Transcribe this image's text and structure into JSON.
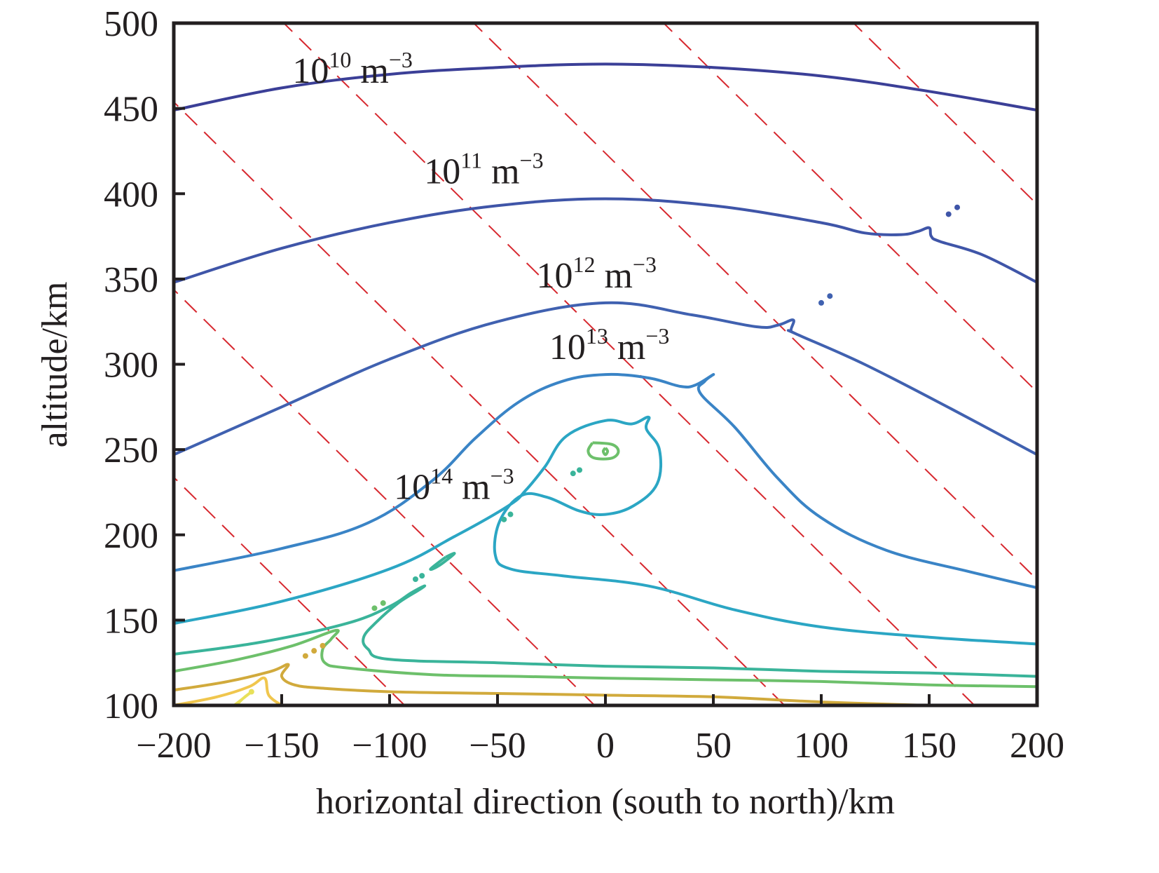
{
  "chart_data": {
    "type": "contour",
    "title": "",
    "xlabel": "horizontal direction (south to north)/km",
    "ylabel": "altitude/km",
    "xlim": [
      -200,
      200
    ],
    "ylim": [
      100,
      500
    ],
    "xticks": [
      -200,
      -150,
      -100,
      -50,
      0,
      50,
      100,
      150,
      200
    ],
    "xtick_labels": [
      "−200",
      "−150",
      "−100",
      "−50",
      "0",
      "50",
      "100",
      "150",
      "200"
    ],
    "yticks": [
      100,
      150,
      200,
      250,
      300,
      350,
      400,
      450,
      500
    ],
    "ytick_labels": [
      "100",
      "150",
      "200",
      "250",
      "300",
      "350",
      "400",
      "450",
      "500"
    ],
    "grid": false,
    "units": "m^-3",
    "contour_labels": [
      {
        "base": "10",
        "exp": "10",
        "unit": "m",
        "unit_exp": "−3",
        "x": -145,
        "y": 465
      },
      {
        "base": "10",
        "exp": "11",
        "unit": "m",
        "unit_exp": "−3",
        "x": -84,
        "y": 406
      },
      {
        "base": "10",
        "exp": "12",
        "unit": "m",
        "unit_exp": "−3",
        "x": -32,
        "y": 345
      },
      {
        "base": "10",
        "exp": "13",
        "unit": "m",
        "unit_exp": "−3",
        "x": -26,
        "y": 303
      },
      {
        "base": "10",
        "exp": "14",
        "unit": "m",
        "unit_exp": "−3",
        "x": -98,
        "y": 221
      }
    ],
    "contours": [
      {
        "level": "1e10",
        "color": "#3b3f97",
        "points": [
          [
            -200,
            449
          ],
          [
            -150,
            462
          ],
          [
            -100,
            470
          ],
          [
            -50,
            474
          ],
          [
            0,
            476
          ],
          [
            50,
            474
          ],
          [
            100,
            469
          ],
          [
            150,
            460
          ],
          [
            200,
            449
          ]
        ]
      },
      {
        "level": "1e11",
        "color": "#3f55a8",
        "points": [
          [
            -200,
            348
          ],
          [
            -150,
            368
          ],
          [
            -100,
            383
          ],
          [
            -50,
            393
          ],
          [
            0,
            397
          ],
          [
            50,
            393
          ],
          [
            100,
            383
          ],
          [
            120,
            377
          ],
          [
            137,
            376
          ],
          [
            145,
            378
          ],
          [
            150,
            380
          ],
          [
            151,
            375
          ],
          [
            155,
            372
          ],
          [
            175,
            364
          ],
          [
            200,
            348
          ]
        ]
      },
      {
        "level": "1e12",
        "color": "#4061b0",
        "points": [
          [
            -200,
            247
          ],
          [
            -150,
            275
          ],
          [
            -100,
            303
          ],
          [
            -50,
            325
          ],
          [
            0,
            336
          ],
          [
            40,
            329
          ],
          [
            70,
            322
          ],
          [
            80,
            323
          ],
          [
            87,
            326
          ],
          [
            86,
            320
          ],
          [
            88,
            318
          ],
          [
            120,
            300
          ],
          [
            160,
            274
          ],
          [
            200,
            247
          ]
        ]
      },
      {
        "level": "1e13",
        "color": "#3a84c6",
        "points": [
          [
            -200,
            179
          ],
          [
            -150,
            192
          ],
          [
            -110,
            207
          ],
          [
            -80,
            232
          ],
          [
            -60,
            257
          ],
          [
            -40,
            278
          ],
          [
            -20,
            290
          ],
          [
            0,
            294
          ],
          [
            20,
            292
          ],
          [
            35,
            287
          ],
          [
            42,
            288
          ],
          [
            50,
            294
          ],
          [
            46,
            290
          ],
          [
            44,
            283
          ],
          [
            60,
            263
          ],
          [
            80,
            233
          ],
          [
            100,
            210
          ],
          [
            130,
            191
          ],
          [
            170,
            178
          ],
          [
            200,
            169
          ]
        ]
      },
      {
        "level": "1e14",
        "color": "#2ba6c4",
        "points": [
          [
            -200,
            148
          ],
          [
            -150,
            161
          ],
          [
            -100,
            180
          ],
          [
            -70,
            199
          ],
          [
            -45,
            217
          ],
          [
            -37,
            226
          ],
          [
            -28,
            240
          ],
          [
            -18,
            258
          ],
          [
            0,
            267
          ],
          [
            12,
            265
          ],
          [
            20,
            269
          ],
          [
            19,
            262
          ],
          [
            25,
            250
          ],
          [
            24,
            230
          ],
          [
            13,
            217
          ],
          [
            0,
            212
          ],
          [
            -12,
            214
          ],
          [
            -27,
            222
          ],
          [
            -39,
            223
          ],
          [
            -49,
            208
          ],
          [
            -51,
            188
          ],
          [
            -44,
            180
          ],
          [
            -20,
            176
          ],
          [
            20,
            170
          ],
          [
            60,
            156
          ],
          [
            100,
            146
          ],
          [
            150,
            140
          ],
          [
            200,
            136
          ]
        ]
      },
      {
        "level": "1e15",
        "color": "#3ab49a",
        "points": [
          [
            -200,
            130
          ],
          [
            -160,
            137
          ],
          [
            -120,
            148
          ],
          [
            -100,
            158
          ],
          [
            -90,
            166
          ],
          [
            -84,
            170
          ],
          [
            -86,
            168
          ],
          [
            -96,
            160
          ],
          [
            -106,
            149
          ],
          [
            -112,
            140
          ],
          [
            -110,
            133
          ],
          [
            -100,
            127
          ],
          [
            -50,
            125
          ],
          [
            0,
            123
          ],
          [
            50,
            122
          ],
          [
            100,
            120
          ],
          [
            150,
            119
          ],
          [
            200,
            117
          ]
        ]
      },
      {
        "level": "1e16",
        "color": "#6dc06b",
        "points": [
          [
            -200,
            120
          ],
          [
            -170,
            127
          ],
          [
            -145,
            135
          ],
          [
            -125,
            144
          ],
          [
            -127,
            139
          ],
          [
            -131,
            133
          ],
          [
            -130,
            125
          ],
          [
            -120,
            122
          ],
          [
            -80,
            118
          ],
          [
            -40,
            117
          ],
          [
            0,
            116
          ],
          [
            50,
            115
          ],
          [
            100,
            114
          ],
          [
            150,
            112
          ],
          [
            200,
            111
          ]
        ]
      },
      {
        "level": "1e17",
        "color": "#d1aa3c",
        "points": [
          [
            -200,
            109
          ],
          [
            -175,
            114
          ],
          [
            -155,
            120
          ],
          [
            -147,
            124
          ],
          [
            -150,
            117
          ],
          [
            -144,
            112
          ],
          [
            -130,
            110
          ],
          [
            -100,
            108
          ],
          [
            -50,
            107
          ],
          [
            0,
            106
          ],
          [
            50,
            105
          ],
          [
            100,
            102
          ],
          [
            150,
            100
          ]
        ]
      },
      {
        "level": "1e18",
        "color": "#f0c64d",
        "points": [
          [
            -200,
            100
          ],
          [
            -180,
            105
          ],
          [
            -165,
            111
          ],
          [
            -158,
            116
          ],
          [
            -156,
            106
          ],
          [
            -150,
            100
          ]
        ]
      },
      {
        "level": "1e19",
        "color": "#e8e15a",
        "points": [
          [
            -172,
            100
          ],
          [
            -168,
            104
          ],
          [
            -165,
            107
          ],
          [
            -168,
            104
          ],
          [
            -171,
            100
          ]
        ]
      }
    ],
    "islands": [
      {
        "level": "1e15",
        "color": "#6dc06b",
        "points": [
          [
            -6,
            254
          ],
          [
            3,
            253
          ],
          [
            6,
            249
          ],
          [
            3,
            245
          ],
          [
            -5,
            245
          ],
          [
            -8,
            249
          ],
          [
            -6,
            254
          ]
        ]
      },
      {
        "level": "1e16",
        "color": "#6dc06b",
        "points": [
          [
            0,
            251
          ],
          [
            1,
            249
          ],
          [
            0,
            247
          ],
          [
            -1,
            249
          ],
          [
            0,
            251
          ]
        ]
      },
      {
        "level": "1e14",
        "color": "#3ab49a",
        "points": [
          [
            -74,
            187
          ],
          [
            -70,
            189
          ],
          [
            -77,
            182
          ],
          [
            -81,
            180
          ],
          [
            -74,
            187
          ]
        ]
      }
    ],
    "dots": [
      {
        "color": "#3f55a8",
        "x": 163,
        "y": 392
      },
      {
        "color": "#3f55a8",
        "x": 159,
        "y": 388
      },
      {
        "color": "#4061b0",
        "x": 104,
        "y": 340
      },
      {
        "color": "#4061b0",
        "x": 100,
        "y": 336
      },
      {
        "color": "#3ab49a",
        "x": -15,
        "y": 236
      },
      {
        "color": "#3ab49a",
        "x": -12,
        "y": 238
      },
      {
        "color": "#3ab49a",
        "x": -44,
        "y": 212
      },
      {
        "color": "#3ab49a",
        "x": -47,
        "y": 209
      },
      {
        "color": "#3ab49a",
        "x": -85,
        "y": 176
      },
      {
        "color": "#3ab49a",
        "x": -88,
        "y": 174
      },
      {
        "color": "#6dc06b",
        "x": -103,
        "y": 160
      },
      {
        "color": "#6dc06b",
        "x": -107,
        "y": 157
      },
      {
        "color": "#d1aa3c",
        "x": -135,
        "y": 132
      },
      {
        "color": "#d1aa3c",
        "x": -139,
        "y": 129
      },
      {
        "color": "#d1aa3c",
        "x": -131,
        "y": 135
      },
      {
        "color": "#e8e15a",
        "x": -164,
        "y": 108
      }
    ],
    "reference_lines": {
      "style": "dashed",
      "color": "#d7282f",
      "slope": -1.25,
      "x_at_100km": [
        -93,
        -5,
        83,
        171,
        259,
        347,
        435
      ]
    }
  }
}
